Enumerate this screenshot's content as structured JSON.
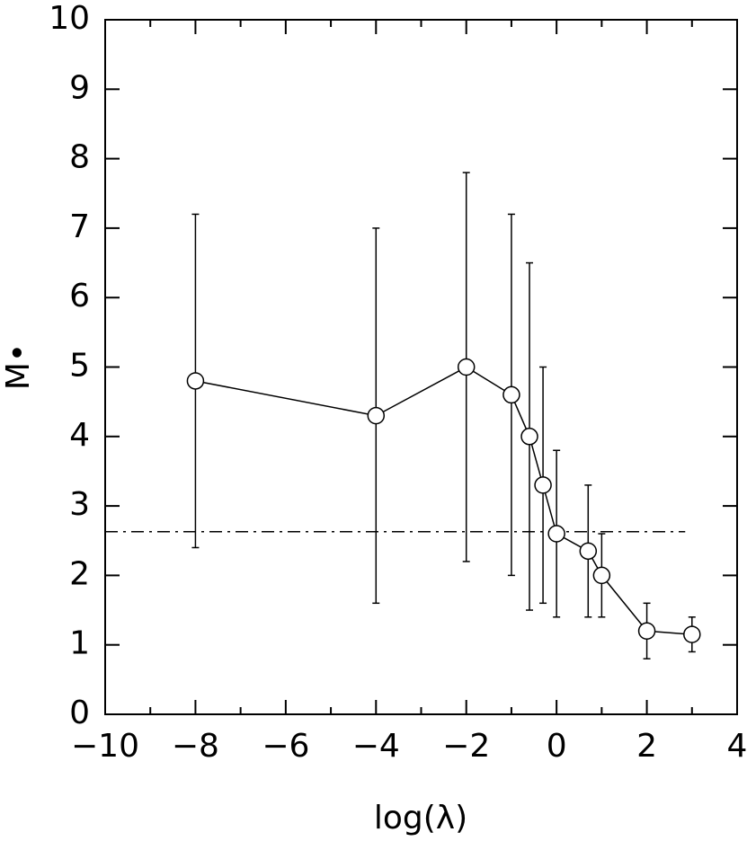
{
  "chart_data": {
    "type": "errorbar",
    "xlabel": "log(λ)",
    "ylabel": "M•",
    "x": [
      -8,
      -4,
      -2,
      -1,
      -0.6,
      -0.3,
      0,
      0.7,
      1,
      2,
      3
    ],
    "values": [
      4.8,
      4.3,
      5.0,
      4.6,
      4.0,
      3.3,
      2.6,
      2.35,
      2.0,
      1.2,
      1.15
    ],
    "errors": [
      2.4,
      2.7,
      2.8,
      2.6,
      2.5,
      1.7,
      1.2,
      0.95,
      0.6,
      0.4,
      0.25
    ],
    "color": "#000000",
    "hline": {
      "y": 2.63,
      "x_end": 2.85
    },
    "xlim": [
      -10,
      4
    ],
    "ylim": [
      0,
      10
    ],
    "xticks": [
      {
        "value": -10,
        "label": "−10"
      },
      {
        "value": -8,
        "label": "−8"
      },
      {
        "value": -6,
        "label": "−6"
      },
      {
        "value": -4,
        "label": "−4"
      },
      {
        "value": -2,
        "label": "−2"
      },
      0,
      2,
      4
    ],
    "xminor": [
      -9,
      -7,
      -5,
      -3,
      -1,
      1,
      3
    ],
    "yticks": [
      0,
      1,
      2,
      3,
      4,
      5,
      6,
      7,
      8,
      9,
      10
    ]
  }
}
